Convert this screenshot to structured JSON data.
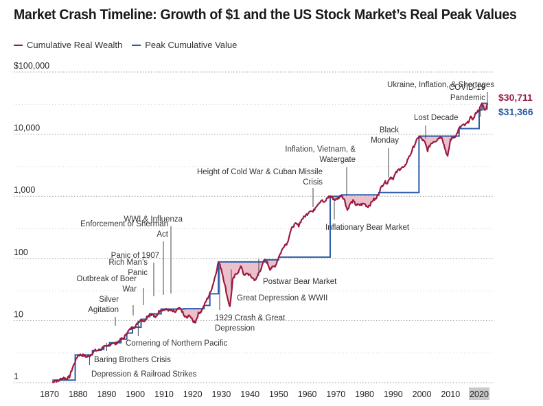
{
  "title": "Market Crash Timeline: Growth of $1 and the US Stock Market’s Real Peak Values",
  "legend": [
    {
      "label": "Cumulative Real Wealth",
      "color": "#9b1b3f"
    },
    {
      "label": "Peak Cumulative Value",
      "color": "#2a5ca8"
    }
  ],
  "colors": {
    "wealth": "#9b1b3f",
    "peak": "#2a5ca8",
    "drawdown_fill": "#e8b4c2",
    "grid": "#9a9a9a",
    "highlight": "#c9c9c9"
  },
  "chart_data": {
    "type": "line",
    "yscale": "log",
    "ylim": [
      1,
      100000
    ],
    "xlim": [
      1870,
      2023
    ],
    "y_ticks": [
      "1",
      "10",
      "100",
      "1,000",
      "10,000",
      "$100,000"
    ],
    "x_ticks": [
      "1870",
      "1880",
      "1890",
      "1900",
      "1910",
      "1920",
      "1930",
      "1940",
      "1950",
      "1960",
      "1970",
      "1980",
      "1990",
      "2000",
      "2010",
      "2020"
    ],
    "highlighted_x_tick": "2020",
    "end_values": {
      "cumulative_real_wealth": "$30,711",
      "peak_cumulative_value": "$31,366"
    },
    "series": [
      {
        "name": "Cumulative Real Wealth",
        "points": [
          [
            1871,
            1.0
          ],
          [
            1872,
            1.1
          ],
          [
            1873,
            1.05
          ],
          [
            1874,
            1.15
          ],
          [
            1875,
            1.2
          ],
          [
            1876,
            1.15
          ],
          [
            1877,
            1.25
          ],
          [
            1878,
            1.7
          ],
          [
            1879,
            2.2
          ],
          [
            1880,
            2.8
          ],
          [
            1881,
            2.8
          ],
          [
            1882,
            2.75
          ],
          [
            1883,
            2.6
          ],
          [
            1884,
            2.7
          ],
          [
            1885,
            3.0
          ],
          [
            1886,
            3.3
          ],
          [
            1887,
            3.3
          ],
          [
            1888,
            3.45
          ],
          [
            1889,
            3.9
          ],
          [
            1890,
            3.7
          ],
          [
            1891,
            4.1
          ],
          [
            1892,
            4.4
          ],
          [
            1893,
            4.2
          ],
          [
            1894,
            4.6
          ],
          [
            1895,
            5.0
          ],
          [
            1896,
            5.2
          ],
          [
            1897,
            6.3
          ],
          [
            1898,
            7.1
          ],
          [
            1899,
            7.8
          ],
          [
            1900,
            7.9
          ],
          [
            1901,
            9.5
          ],
          [
            1902,
            10.5
          ],
          [
            1903,
            9.6
          ],
          [
            1904,
            11.5
          ],
          [
            1905,
            12.8
          ],
          [
            1906,
            12.5
          ],
          [
            1907,
            11.0
          ],
          [
            1908,
            13.5
          ],
          [
            1909,
            15.3
          ],
          [
            1910,
            14.8
          ],
          [
            1911,
            15.0
          ],
          [
            1912,
            14.6
          ],
          [
            1913,
            14.0
          ],
          [
            1914,
            13.6
          ],
          [
            1915,
            15.5
          ],
          [
            1916,
            15.2
          ],
          [
            1917,
            11.8
          ],
          [
            1918,
            11.0
          ],
          [
            1919,
            12.3
          ],
          [
            1920,
            9.8
          ],
          [
            1921,
            9.5
          ],
          [
            1922,
            13.0
          ],
          [
            1923,
            14.2
          ],
          [
            1924,
            17.5
          ],
          [
            1925,
            22.0
          ],
          [
            1926,
            27.0
          ],
          [
            1927,
            37.0
          ],
          [
            1928,
            55.0
          ],
          [
            1929,
            88.0
          ],
          [
            1930,
            68.0
          ],
          [
            1931,
            42.0
          ],
          [
            1932,
            25.0
          ],
          [
            1933,
            16.5
          ],
          [
            1934,
            45.0
          ],
          [
            1935,
            55.0
          ],
          [
            1936,
            62.0
          ],
          [
            1937,
            75.0
          ],
          [
            1938,
            52.0
          ],
          [
            1939,
            58.0
          ],
          [
            1940,
            53.0
          ],
          [
            1941,
            48.0
          ],
          [
            1942,
            44.0
          ],
          [
            1943,
            58.0
          ],
          [
            1944,
            70.0
          ],
          [
            1945,
            95.0
          ],
          [
            1946,
            86.0
          ],
          [
            1947,
            68.0
          ],
          [
            1948,
            72.0
          ],
          [
            1949,
            78.0
          ],
          [
            1950,
            105.0
          ],
          [
            1951,
            130.0
          ],
          [
            1952,
            165.0
          ],
          [
            1953,
            175.0
          ],
          [
            1954,
            260.0
          ],
          [
            1955,
            330.0
          ],
          [
            1956,
            360.0
          ],
          [
            1957,
            340.0
          ],
          [
            1958,
            420.0
          ],
          [
            1959,
            470.0
          ],
          [
            1960,
            520.0
          ],
          [
            1961,
            600.0
          ],
          [
            1962,
            560.0
          ],
          [
            1963,
            690.0
          ],
          [
            1964,
            780.0
          ],
          [
            1965,
            870.0
          ],
          [
            1966,
            780.0
          ],
          [
            1967,
            950.0
          ],
          [
            1968,
            1000.0
          ],
          [
            1969,
            920.0
          ],
          [
            1970,
            880.0
          ],
          [
            1971,
            960.0
          ],
          [
            1972,
            1050.0
          ],
          [
            1973,
            870.0
          ],
          [
            1974,
            600.0
          ],
          [
            1975,
            760.0
          ],
          [
            1976,
            840.0
          ],
          [
            1977,
            730.0
          ],
          [
            1978,
            720.0
          ],
          [
            1979,
            740.0
          ],
          [
            1980,
            760.0
          ],
          [
            1981,
            680.0
          ],
          [
            1982,
            740.0
          ],
          [
            1983,
            880.0
          ],
          [
            1984,
            900.0
          ],
          [
            1985,
            1150.0
          ],
          [
            1986,
            1450.0
          ],
          [
            1987,
            1700.0
          ],
          [
            1988,
            1650.0
          ],
          [
            1989,
            2050.0
          ],
          [
            1990,
            1950.0
          ],
          [
            1991,
            2400.0
          ],
          [
            1992,
            2700.0
          ],
          [
            1993,
            2900.0
          ],
          [
            1994,
            2900.0
          ],
          [
            1995,
            3900.0
          ],
          [
            1996,
            4700.0
          ],
          [
            1997,
            6100.0
          ],
          [
            1998,
            7600.0
          ],
          [
            1999,
            9300.0
          ],
          [
            2000,
            8300.0
          ],
          [
            2001,
            7400.0
          ],
          [
            2002,
            5500.0
          ],
          [
            2003,
            6900.0
          ],
          [
            2004,
            7600.0
          ],
          [
            2005,
            7900.0
          ],
          [
            2006,
            8800.0
          ],
          [
            2007,
            9100.0
          ],
          [
            2008,
            6000.0
          ],
          [
            2009,
            4300.0
          ],
          [
            2010,
            8200.0
          ],
          [
            2011,
            8900.0
          ],
          [
            2012,
            9600.0
          ],
          [
            2013,
            12300.0
          ],
          [
            2014,
            13800.0
          ],
          [
            2015,
            13900.0
          ],
          [
            2016,
            15300.0
          ],
          [
            2017,
            18500.0
          ],
          [
            2018,
            17700.0
          ],
          [
            2019,
            22500.0
          ],
          [
            2020,
            24500.0
          ],
          [
            2021,
            31366.0
          ],
          [
            2022,
            24000.0
          ],
          [
            2023,
            30711.0
          ]
        ]
      },
      {
        "name": "Peak Cumulative Value",
        "points": [
          [
            1871,
            1.1
          ],
          [
            1879,
            2.8
          ],
          [
            1882,
            2.8
          ],
          [
            1885,
            3.3
          ],
          [
            1888,
            3.45
          ],
          [
            1889,
            3.9
          ],
          [
            1891,
            4.4
          ],
          [
            1893,
            4.4
          ],
          [
            1895,
            5.0
          ],
          [
            1897,
            6.3
          ],
          [
            1899,
            7.8
          ],
          [
            1902,
            10.5
          ],
          [
            1904,
            11.5
          ],
          [
            1905,
            12.8
          ],
          [
            1909,
            15.3
          ],
          [
            1917,
            15.5
          ],
          [
            1924,
            17.5
          ],
          [
            1926,
            27.0
          ],
          [
            1929,
            88.0
          ],
          [
            1945,
            95.0
          ],
          [
            1950,
            105.0
          ],
          [
            1968,
            1000.0
          ],
          [
            1972,
            1050.0
          ],
          [
            1985,
            1150.0
          ],
          [
            1999,
            9300.0
          ],
          [
            2007,
            9300.0
          ],
          [
            2013,
            12300.0
          ],
          [
            2020,
            24500.0
          ],
          [
            2021,
            31366.0
          ],
          [
            2023,
            31366.0
          ]
        ]
      }
    ],
    "drawdowns": [
      [
        1882,
        1885
      ],
      [
        1889,
        1891
      ],
      [
        1893,
        1895
      ],
      [
        1906,
        1909
      ],
      [
        1912,
        1924
      ],
      [
        1929,
        1945
      ],
      [
        1946,
        1950
      ],
      [
        1968,
        1985
      ],
      [
        2000,
        2013
      ],
      [
        2020,
        2021
      ],
      [
        2021,
        2023
      ]
    ],
    "annotations": [
      {
        "id": "depression-railroad",
        "year": 1884,
        "lines": [
          "Depression & Railroad Strikes"
        ],
        "anchor": "start"
      },
      {
        "id": "baring-brothers",
        "year": 1890,
        "lines": [
          "Baring Brothers Crisis"
        ],
        "anchor": "start"
      },
      {
        "id": "cornering-northern-pacific",
        "year": 1901,
        "lines": [
          "Cornering of Northern Pacific"
        ],
        "anchor": "start"
      },
      {
        "id": "silver-agitation",
        "year": 1896,
        "lines": [
          "Silver",
          "Agitation"
        ],
        "anchor": "end"
      },
      {
        "id": "outbreak-boer-war",
        "year": 1899,
        "lines": [
          "Outbreak of Boer",
          "War"
        ],
        "anchor": "end"
      },
      {
        "id": "rich-mans-panic",
        "year": 1903,
        "lines": [
          "Rich Man’s",
          "Panic"
        ],
        "anchor": "end"
      },
      {
        "id": "panic-1907",
        "year": 1907,
        "lines": [
          "Panic of 1907"
        ],
        "anchor": "end"
      },
      {
        "id": "enforcement-sherman-act",
        "year": 1911,
        "lines": [
          "Enforcement of Sherman",
          "Act"
        ],
        "anchor": "end"
      },
      {
        "id": "wwi-influenza",
        "year": 1917,
        "lines": [
          "WWI & Influenza"
        ],
        "anchor": "end"
      },
      {
        "id": "crash-1929",
        "year": 1929,
        "lines": [
          "1929 Crash & Great",
          "Depression"
        ],
        "anchor": "start"
      },
      {
        "id": "great-depression-wwii",
        "year": 1937,
        "lines": [
          "Great Depression & WWII"
        ],
        "anchor": "start"
      },
      {
        "id": "postwar-bear",
        "year": 1946,
        "lines": [
          "Postwar Bear Market"
        ],
        "anchor": "start"
      },
      {
        "id": "cold-war-cuban-missile",
        "year": 1962,
        "lines": [
          "Height of Cold War & Cuban Missile",
          "Crisis"
        ],
        "anchor": "end"
      },
      {
        "id": "inflationary-bear",
        "year": 1968,
        "lines": [
          "Inflationary Bear Market"
        ],
        "anchor": "start"
      },
      {
        "id": "inflation-vietnam-watergate",
        "year": 1973,
        "lines": [
          "Inflation, Vietnam, &",
          "Watergate"
        ],
        "anchor": "end"
      },
      {
        "id": "black-monday",
        "year": 1987,
        "lines": [
          "Black",
          "Monday"
        ],
        "anchor": "end"
      },
      {
        "id": "lost-decade",
        "year": 2000,
        "lines": [
          "Lost Decade"
        ],
        "anchor": "middle"
      },
      {
        "id": "covid-19",
        "year": 2020,
        "lines": [
          "COVID-19",
          "Pandemic"
        ],
        "anchor": "end"
      },
      {
        "id": "ukraine-inflation-shortages",
        "year": 2022,
        "lines": [
          "Ukraine, Inflation, & Shortages"
        ],
        "anchor": "end"
      }
    ]
  }
}
